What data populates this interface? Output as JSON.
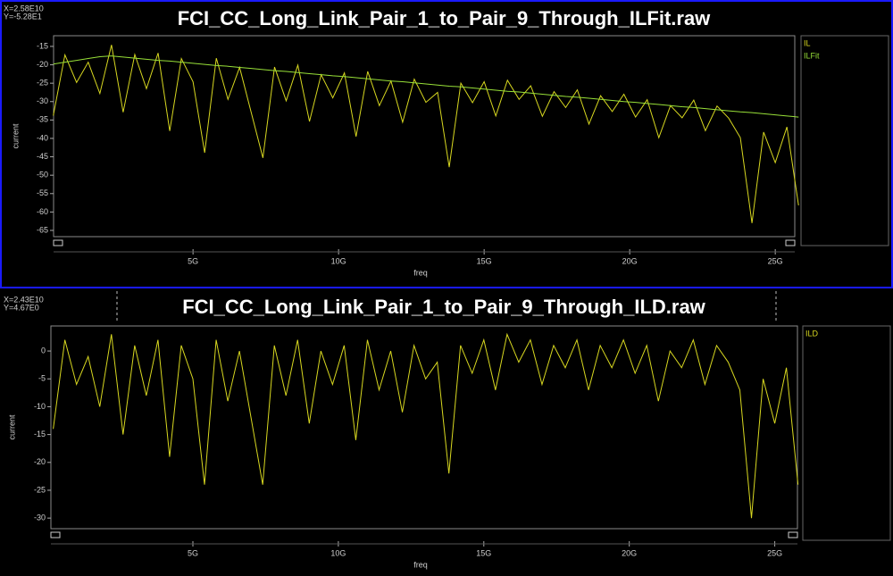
{
  "chart_data": [
    {
      "type": "line",
      "title": "FCI_CC_Long_Link_Pair_1_to_Pair_9_Through_ILFit.raw",
      "cursor_readout": [
        "X=2.58E10",
        "Y=-5.28E1"
      ],
      "x_label": "freq",
      "y_label": "current",
      "x": [
        200000000.0,
        600000000.0,
        1000000000.0,
        1400000000.0,
        1800000000.0,
        2200000000.0,
        2600000000.0,
        3000000000.0,
        3400000000.0,
        3800000000.0,
        4200000000.0,
        4600000000.0,
        5000000000.0,
        5400000000.0,
        5800000000.0,
        6200000000.0,
        6600000000.0,
        7000000000.0,
        7400000000.0,
        7800000000.0,
        8200000000.0,
        8600000000.0,
        9000000000.0,
        9400000000.0,
        9800000000.0,
        10200000000.0,
        10600000000.0,
        11000000000.0,
        11400000000.0,
        11800000000.0,
        12200000000.0,
        12600000000.0,
        13000000000.0,
        13400000000.0,
        13800000000.0,
        14200000000.0,
        14600000000.0,
        15000000000.0,
        15400000000.0,
        15800000000.0,
        16200000000.0,
        16600000000.0,
        17000000000.0,
        17400000000.0,
        17800000000.0,
        18200000000.0,
        18600000000.0,
        19000000000.0,
        19400000000.0,
        19800000000.0,
        20200000000.0,
        20600000000.0,
        21000000000.0,
        21400000000.0,
        21800000000.0,
        22200000000.0,
        22600000000.0,
        23000000000.0,
        23400000000.0,
        23800000000.0,
        24200000000.0,
        24600000000.0,
        25000000000.0,
        25400000000.0,
        25800000000.0
      ],
      "series": [
        {
          "name": "IL",
          "color": "#d8d820",
          "values": [
            -33.8,
            -17.3,
            -24.8,
            -19.3,
            -27.8,
            -14.6,
            -32.9,
            -17.2,
            -26.5,
            -16.8,
            -38.0,
            -18.3,
            -24.6,
            -43.9,
            -18.2,
            -29.4,
            -20.7,
            -33.0,
            -45.3,
            -20.6,
            -29.8,
            -20.1,
            -35.4,
            -22.7,
            -29.0,
            -22.2,
            -39.5,
            -21.8,
            -31.1,
            -24.4,
            -35.6,
            -23.9,
            -30.2,
            -27.5,
            -47.8,
            -25.0,
            -30.3,
            -24.6,
            -33.9,
            -24.2,
            -29.4,
            -25.7,
            -34.0,
            -27.3,
            -31.6,
            -26.8,
            -36.1,
            -28.4,
            -32.7,
            -28.0,
            -34.2,
            -29.5,
            -39.8,
            -31.1,
            -34.4,
            -29.6,
            -37.9,
            -31.2,
            -34.5,
            -39.8,
            -63.0,
            -38.3,
            -46.6,
            -36.9,
            -58.2
          ]
        },
        {
          "name": "ILFit",
          "color": "#98e038",
          "values": [
            -19.8,
            -19.3,
            -18.8,
            -18.3,
            -17.8,
            -17.6,
            -17.9,
            -18.2,
            -18.5,
            -18.8,
            -19.0,
            -19.3,
            -19.6,
            -19.9,
            -20.2,
            -20.4,
            -20.7,
            -21.0,
            -21.3,
            -21.6,
            -21.8,
            -22.1,
            -22.4,
            -22.7,
            -23.0,
            -23.2,
            -23.5,
            -23.8,
            -24.1,
            -24.4,
            -24.6,
            -24.9,
            -25.2,
            -25.5,
            -25.8,
            -26.0,
            -26.3,
            -26.6,
            -26.9,
            -27.2,
            -27.4,
            -27.7,
            -28.0,
            -28.3,
            -28.6,
            -28.8,
            -29.1,
            -29.4,
            -29.7,
            -30.0,
            -30.2,
            -30.5,
            -30.8,
            -31.1,
            -31.4,
            -31.6,
            -31.9,
            -32.2,
            -32.5,
            -32.8,
            -33.0,
            -33.3,
            -33.6,
            -33.9,
            -34.2
          ]
        }
      ],
      "xlim": [
        210000000.0,
        25670000000.0
      ],
      "ylim": [
        -66.7,
        -12.1
      ],
      "xticks": [
        {
          "value": 5000000000.0,
          "label": "5G"
        },
        {
          "value": 10000000000.0,
          "label": "10G"
        },
        {
          "value": 15000000000.0,
          "label": "15G"
        },
        {
          "value": 20000000000.0,
          "label": "20G"
        },
        {
          "value": 25000000000.0,
          "label": "25G"
        }
      ],
      "yticks": [
        -15,
        -20,
        -25,
        -30,
        -35,
        -40,
        -45,
        -50,
        -55,
        -60,
        -65
      ]
    },
    {
      "type": "line",
      "title": "FCI_CC_Long_Link_Pair_1_to_Pair_9_Through_ILD.raw",
      "cursor_readout": [
        "X=2.43E10",
        "Y=4.67E0"
      ],
      "x_label": "freq",
      "y_label": "current",
      "x": [
        200000000.0,
        600000000.0,
        1000000000.0,
        1400000000.0,
        1800000000.0,
        2200000000.0,
        2600000000.0,
        3000000000.0,
        3400000000.0,
        3800000000.0,
        4200000000.0,
        4600000000.0,
        5000000000.0,
        5400000000.0,
        5800000000.0,
        6200000000.0,
        6600000000.0,
        7000000000.0,
        7400000000.0,
        7800000000.0,
        8200000000.0,
        8600000000.0,
        9000000000.0,
        9400000000.0,
        9800000000.0,
        10200000000.0,
        10600000000.0,
        11000000000.0,
        11400000000.0,
        11800000000.0,
        12200000000.0,
        12600000000.0,
        13000000000.0,
        13400000000.0,
        13800000000.0,
        14200000000.0,
        14600000000.0,
        15000000000.0,
        15400000000.0,
        15800000000.0,
        16200000000.0,
        16600000000.0,
        17000000000.0,
        17400000000.0,
        17800000000.0,
        18200000000.0,
        18600000000.0,
        19000000000.0,
        19400000000.0,
        19800000000.0,
        20200000000.0,
        20600000000.0,
        21000000000.0,
        21400000000.0,
        21800000000.0,
        22200000000.0,
        22600000000.0,
        23000000000.0,
        23400000000.0,
        23800000000.0,
        24200000000.0,
        24600000000.0,
        25000000000.0,
        25400000000.0,
        25800000000.0
      ],
      "series": [
        {
          "name": "ILD",
          "color": "#d8d820",
          "values": [
            -14,
            2,
            -6,
            -1,
            -10,
            3,
            -15,
            1,
            -8,
            2,
            -19,
            1,
            -5,
            -24,
            2,
            -9,
            0,
            -12,
            -24,
            1,
            -8,
            2,
            -13,
            0,
            -6,
            1,
            -16,
            2,
            -7,
            0,
            -11,
            1,
            -5,
            -2,
            -22,
            1,
            -4,
            2,
            -7,
            3,
            -2,
            2,
            -6,
            1,
            -3,
            2,
            -7,
            1,
            -3,
            2,
            -4,
            1,
            -9,
            0,
            -3,
            2,
            -6,
            1,
            -2,
            -7,
            -30,
            -5,
            -13,
            -3,
            -24
          ]
        }
      ],
      "xlim": [
        120000000.0,
        25780000000.0
      ],
      "ylim": [
        -31.9,
        4.5
      ],
      "xticks": [
        {
          "value": 5000000000.0,
          "label": "5G"
        },
        {
          "value": 10000000000.0,
          "label": "10G"
        },
        {
          "value": 15000000000.0,
          "label": "15G"
        },
        {
          "value": 20000000000.0,
          "label": "20G"
        },
        {
          "value": 25000000000.0,
          "label": "25G"
        }
      ],
      "yticks": [
        0,
        -5,
        -10,
        -15,
        -20,
        -25,
        -30
      ]
    }
  ]
}
